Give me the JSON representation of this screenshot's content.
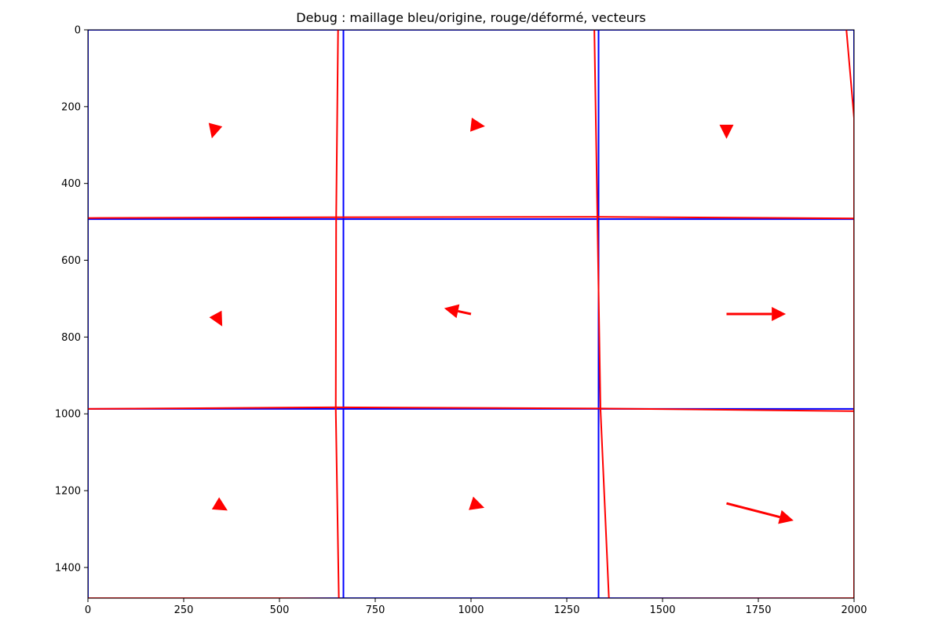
{
  "figure": {
    "title": "Debug : maillage bleu/origine, rouge/déformé, vecteurs"
  },
  "chart_data": {
    "type": "line",
    "title": "Debug : maillage bleu/origine, rouge/déformé, vecteurs",
    "xlabel": "",
    "ylabel": "",
    "xlim": [
      0,
      2000
    ],
    "ylim": [
      1480,
      0
    ],
    "y_inverted": true,
    "grid": false,
    "legend": null,
    "x_ticks": [
      0,
      250,
      500,
      750,
      1000,
      1250,
      1500,
      1750,
      2000
    ],
    "y_ticks": [
      0,
      200,
      400,
      600,
      800,
      1000,
      1200,
      1400
    ],
    "colors": {
      "original_mesh": "#0000ff",
      "deformed_mesh": "#ff0000",
      "vectors": "#ff0000",
      "axes": "#000000"
    },
    "original_mesh": {
      "color": "blue",
      "vertical_x": [
        0,
        667,
        1333,
        2000
      ],
      "horizontal_y": [
        0,
        493,
        987,
        1480
      ]
    },
    "deformed_mesh": {
      "color": "red",
      "vertical_lines": [
        [
          [
            653,
            0
          ],
          [
            648,
            493
          ],
          [
            647,
            987
          ],
          [
            655,
            1480
          ]
        ],
        [
          [
            1322,
            0
          ],
          [
            1330,
            493
          ],
          [
            1338,
            987
          ],
          [
            1360,
            1480
          ]
        ],
        [
          [
            1980,
            0
          ],
          [
            2000,
            230
          ],
          [
            2000,
            493
          ],
          [
            2000,
            987
          ],
          [
            2000,
            1480
          ]
        ]
      ],
      "horizontal_lines": [
        [
          [
            0,
            490
          ],
          [
            648,
            488
          ],
          [
            1330,
            487
          ],
          [
            2000,
            491
          ]
        ],
        [
          [
            0,
            987
          ],
          [
            647,
            983
          ],
          [
            1338,
            986
          ],
          [
            2000,
            993
          ]
        ],
        [
          [
            0,
            1480
          ],
          [
            500,
            1480
          ],
          [
            655,
            1481
          ],
          [
            1360,
            1481
          ],
          [
            2000,
            1480
          ]
        ]
      ]
    },
    "vectors": {
      "color": "red",
      "series": [
        {
          "x": 333,
          "y": 247,
          "dx": -8,
          "dy": 30
        },
        {
          "x": 1000,
          "y": 247,
          "dx": 18,
          "dy": 2
        },
        {
          "x": 1667,
          "y": 247,
          "dx": 0,
          "dy": 20
        },
        {
          "x": 333,
          "y": 740,
          "dx": 12,
          "dy": 22
        },
        {
          "x": 1000,
          "y": 740,
          "dx": -70,
          "dy": -15
        },
        {
          "x": 1667,
          "y": 740,
          "dx": 155,
          "dy": 0
        },
        {
          "x": 333,
          "y": 1233,
          "dx": 10,
          "dy": 6
        },
        {
          "x": 1000,
          "y": 1233,
          "dx": 15,
          "dy": 5
        },
        {
          "x": 1667,
          "y": 1233,
          "dx": 175,
          "dy": 45
        }
      ]
    }
  }
}
